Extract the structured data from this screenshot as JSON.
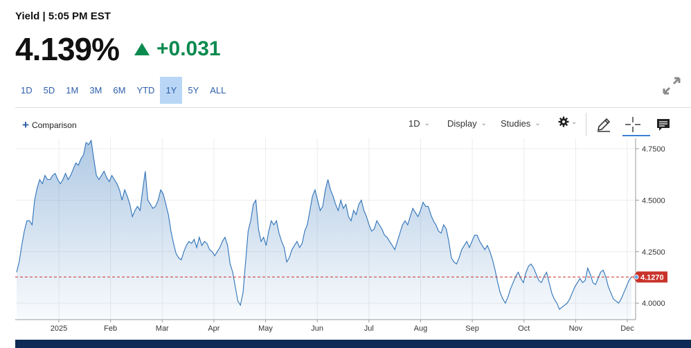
{
  "header": {
    "label": "Yield",
    "separator": "|",
    "time": "5:05 PM EST"
  },
  "quote": {
    "price": "4.139%",
    "change": "+0.031",
    "change_color": "#0b8a4f",
    "direction_icon": "triangle-up-icon"
  },
  "range_tabs": [
    "1D",
    "5D",
    "1M",
    "3M",
    "6M",
    "YTD",
    "1Y",
    "5Y",
    "ALL"
  ],
  "active_range": "1Y",
  "toolbar": {
    "comparison_label": "Comparison",
    "interval_label": "1D",
    "display_label": "Display",
    "studies_label": "Studies",
    "settings_icon": "gear-icon",
    "draw_icon": "pencil-icon",
    "crosshair_icon": "crosshair-icon",
    "comments_icon": "comment-icon",
    "expand_icon": "expand-icon"
  },
  "chart_data": {
    "type": "area",
    "y_ticks": [
      "4.7500",
      "4.5000",
      "4.2500",
      "4.0000"
    ],
    "x_ticks": [
      "2025",
      "Feb",
      "Mar",
      "Apr",
      "May",
      "Jun",
      "Jul",
      "Aug",
      "Sep",
      "Oct",
      "Nov",
      "Dec"
    ],
    "ylim": [
      3.92,
      4.8
    ],
    "last_value_label": "4.1270",
    "last_value": 4.127,
    "line_color": "#2e72b8",
    "last_value_color": "#c9332b",
    "grid": true,
    "series": [
      {
        "values": [
          4.15,
          4.2,
          4.28,
          4.35,
          4.4,
          4.4,
          4.38,
          4.5,
          4.56,
          4.6,
          4.58,
          4.62,
          4.6,
          4.6,
          4.62,
          4.63,
          4.6,
          4.58,
          4.6,
          4.63,
          4.6,
          4.62,
          4.65,
          4.68,
          4.67,
          4.7,
          4.72,
          4.78,
          4.77,
          4.79,
          4.7,
          4.62,
          4.6,
          4.62,
          4.64,
          4.61,
          4.59,
          4.62,
          4.6,
          4.58,
          4.55,
          4.5,
          4.55,
          4.52,
          4.48,
          4.42,
          4.45,
          4.47,
          4.45,
          4.55,
          4.64,
          4.5,
          4.48,
          4.46,
          4.47,
          4.5,
          4.55,
          4.53,
          4.48,
          4.43,
          4.35,
          4.29,
          4.24,
          4.22,
          4.21,
          4.25,
          4.28,
          4.3,
          4.29,
          4.31,
          4.27,
          4.32,
          4.28,
          4.3,
          4.29,
          4.26,
          4.25,
          4.23,
          4.25,
          4.27,
          4.3,
          4.32,
          4.28,
          4.19,
          4.15,
          4.08,
          4.01,
          3.99,
          4.05,
          4.2,
          4.35,
          4.4,
          4.48,
          4.5,
          4.36,
          4.3,
          4.32,
          4.28,
          4.35,
          4.4,
          4.38,
          4.4,
          4.34,
          4.3,
          4.27,
          4.2,
          4.22,
          4.26,
          4.28,
          4.3,
          4.27,
          4.29,
          4.35,
          4.38,
          4.45,
          4.52,
          4.55,
          4.5,
          4.45,
          4.47,
          4.55,
          4.6,
          4.55,
          4.52,
          4.48,
          4.45,
          4.5,
          4.46,
          4.48,
          4.42,
          4.4,
          4.45,
          4.43,
          4.48,
          4.5,
          4.45,
          4.42,
          4.38,
          4.35,
          4.36,
          4.4,
          4.38,
          4.36,
          4.33,
          4.32,
          4.3,
          4.28,
          4.26,
          4.3,
          4.34,
          4.38,
          4.4,
          4.38,
          4.42,
          4.46,
          4.44,
          4.42,
          4.45,
          4.49,
          4.47,
          4.47,
          4.43,
          4.4,
          4.38,
          4.35,
          4.34,
          4.38,
          4.36,
          4.3,
          4.22,
          4.2,
          4.19,
          4.22,
          4.26,
          4.28,
          4.3,
          4.27,
          4.3,
          4.33,
          4.33,
          4.3,
          4.28,
          4.26,
          4.28,
          4.25,
          4.21,
          4.16,
          4.1,
          4.05,
          4.02,
          4.0,
          4.03,
          4.07,
          4.1,
          4.13,
          4.15,
          4.12,
          4.1,
          4.15,
          4.18,
          4.19,
          4.17,
          4.14,
          4.11,
          4.1,
          4.13,
          4.15,
          4.1,
          4.05,
          4.02,
          4.0,
          3.97,
          3.98,
          3.99,
          4.0,
          4.02,
          4.05,
          4.08,
          4.1,
          4.12,
          4.1,
          4.11,
          4.17,
          4.14,
          4.1,
          4.09,
          4.12,
          4.15,
          4.16,
          4.13,
          4.08,
          4.05,
          4.02,
          4.01,
          4.0,
          4.02,
          4.05,
          4.08,
          4.11,
          4.127
        ]
      }
    ]
  }
}
